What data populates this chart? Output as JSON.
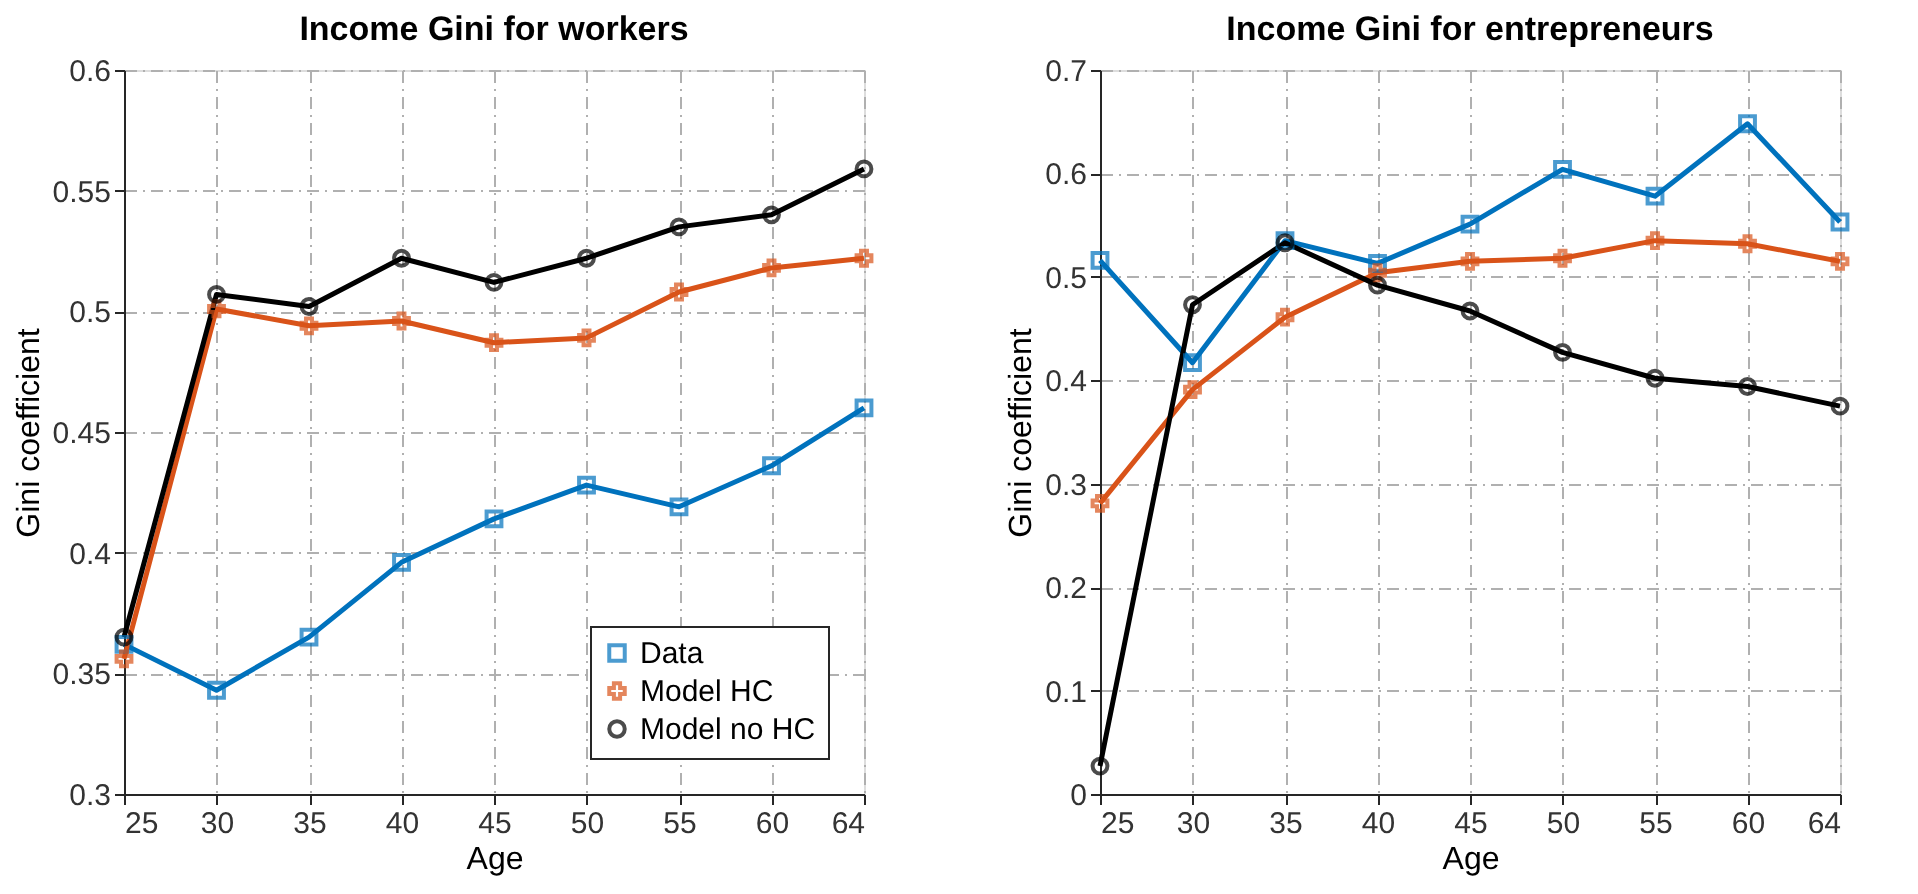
{
  "chart_data": [
    {
      "type": "line",
      "title": "Income Gini for workers",
      "xlabel": "Age",
      "ylabel": "Gini coefficient",
      "categories": [
        "25",
        "30",
        "35",
        "40",
        "45",
        "50",
        "55",
        "60",
        "64"
      ],
      "series": [
        {
          "name": "Data",
          "color": "#0072bd",
          "marker": "square",
          "values": [
            0.362,
            0.343,
            0.365,
            0.396,
            0.414,
            0.428,
            0.419,
            0.436,
            0.46
          ]
        },
        {
          "name": "Model HC",
          "color": "#d95319",
          "marker": "cross",
          "values": [
            0.356,
            0.501,
            0.494,
            0.496,
            0.487,
            0.489,
            0.508,
            0.518,
            0.522
          ]
        },
        {
          "name": "Model no HC",
          "color": "#000000",
          "marker": "circle",
          "values": [
            0.365,
            0.507,
            0.502,
            0.522,
            0.512,
            0.522,
            0.535,
            0.54,
            0.559
          ]
        }
      ],
      "ylim": [
        0.3,
        0.6
      ],
      "yticks": [
        0.3,
        0.35,
        0.4,
        0.45,
        0.5,
        0.55,
        0.6
      ],
      "grid": true,
      "legend": "bottom right",
      "line_style": "solid"
    },
    {
      "type": "line",
      "title": "Income Gini for entrepreneurs",
      "xlabel": "Age",
      "ylabel": "Gini coefficient",
      "categories": [
        "25",
        "30",
        "35",
        "40",
        "45",
        "50",
        "55",
        "60",
        "64"
      ],
      "series": [
        {
          "color": "#0072bd",
          "marker": "square",
          "values": [
            0.516,
            0.417,
            0.535,
            0.513,
            0.551,
            0.604,
            0.578,
            0.648,
            0.553
          ]
        },
        {
          "color": "#d95319",
          "marker": "cross",
          "values": [
            0.281,
            0.391,
            0.461,
            0.504,
            0.515,
            0.518,
            0.535,
            0.532,
            0.515
          ]
        },
        {
          "color": "#000000",
          "marker": "circle",
          "values": [
            0.027,
            0.473,
            0.533,
            0.492,
            0.467,
            0.427,
            0.402,
            0.394,
            0.375
          ]
        }
      ],
      "ylim": [
        0,
        0.7
      ],
      "yticks": [
        0,
        0.1,
        0.2,
        0.3,
        0.4,
        0.5,
        0.6,
        0.7
      ],
      "grid": true,
      "legend": false,
      "line_style": "solid"
    }
  ]
}
